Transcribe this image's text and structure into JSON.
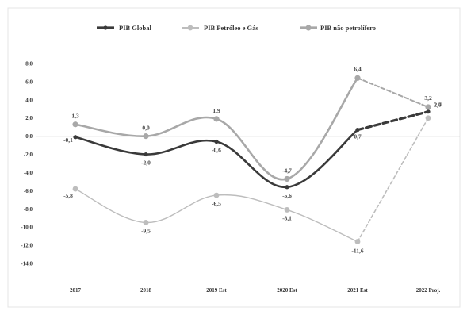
{
  "chart_data": {
    "type": "line",
    "title": "",
    "xlabel": "",
    "ylabel": "",
    "categories": [
      "2017",
      "2018",
      "2019 Est",
      "2020 Est",
      "2021 Est",
      "2022 Proj."
    ],
    "ylim": [
      -14,
      8
    ],
    "yticks": [
      "8,0",
      "6,0",
      "4,0",
      "2,0",
      "0,0",
      "-2,0",
      "-4,0",
      "-6,0",
      "-8,0",
      "-10,0",
      "-12,0",
      "-14,0"
    ],
    "ytick_values": [
      8,
      6,
      4,
      2,
      0,
      -2,
      -4,
      -6,
      -8,
      -10,
      -12,
      -14
    ],
    "legend_position": "top",
    "grid": false,
    "series": [
      {
        "name": "PIB Global",
        "color": "#3a3a3a",
        "values": [
          -0.1,
          -2.0,
          -0.6,
          -5.6,
          0.7,
          2.7
        ],
        "labels": [
          "-0,1",
          "-2,0",
          "-0,6",
          "-5,6",
          "0,7",
          "2,7"
        ],
        "projected_from_index": 4
      },
      {
        "name": "PIB Petróleo e Gás",
        "color": "#bdbdbd",
        "values": [
          -5.8,
          -9.5,
          -6.5,
          -8.1,
          -11.6,
          2.0
        ],
        "labels": [
          "-5,8",
          "-9,5",
          "-6,5",
          "-8,1",
          "-11,6",
          "2,0"
        ],
        "projected_from_index": 4
      },
      {
        "name": "PIB não petrolífero",
        "color": "#a8a8a8",
        "values": [
          1.3,
          0.0,
          1.9,
          -4.7,
          6.4,
          3.2
        ],
        "labels": [
          "1,3",
          "0,0",
          "1,9",
          "-4,7",
          "6,4",
          "3,2"
        ],
        "projected_from_index": 4
      }
    ]
  }
}
